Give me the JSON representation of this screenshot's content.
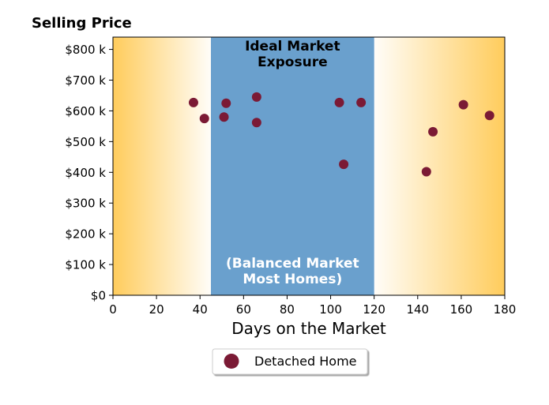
{
  "chart_data": {
    "type": "scatter",
    "title": "Selling Price",
    "xlabel": "Days on the Market",
    "ylabel": "",
    "xlim": [
      0,
      180
    ],
    "ylim": [
      0,
      840000
    ],
    "x_ticks": [
      0,
      20,
      40,
      60,
      80,
      100,
      120,
      140,
      160,
      180
    ],
    "x_tick_labels": [
      "0",
      "20",
      "40",
      "60",
      "80",
      "100",
      "120",
      "140",
      "160",
      "180"
    ],
    "y_ticks": [
      0,
      100000,
      200000,
      300000,
      400000,
      500000,
      600000,
      700000,
      800000
    ],
    "y_tick_labels": [
      "$0",
      "$100 k",
      "$200 k",
      "$300 k",
      "$400 k",
      "$500 k",
      "$600 k",
      "$700 k",
      "$800 k"
    ],
    "grid": false,
    "legend_position": "bottom-center",
    "zones": {
      "ideal": {
        "x_range": [
          45,
          120
        ],
        "title_lines": [
          "Ideal Market",
          "Exposure"
        ],
        "subtitle_lines": [
          "(Balanced Market",
          "Most Homes)"
        ],
        "color": "#6aa0cd"
      },
      "gradient_color": "#ffcc5c"
    },
    "series": [
      {
        "name": "Detached Home",
        "color": "#7b1a35",
        "points": [
          {
            "x": 37,
            "y": 627000
          },
          {
            "x": 42,
            "y": 575000
          },
          {
            "x": 51,
            "y": 580000
          },
          {
            "x": 52,
            "y": 625000
          },
          {
            "x": 66,
            "y": 645000
          },
          {
            "x": 66,
            "y": 562000
          },
          {
            "x": 104,
            "y": 627000
          },
          {
            "x": 106,
            "y": 426000
          },
          {
            "x": 114,
            "y": 627000
          },
          {
            "x": 144,
            "y": 402000
          },
          {
            "x": 147,
            "y": 532000
          },
          {
            "x": 161,
            "y": 620000
          },
          {
            "x": 173,
            "y": 585000
          }
        ]
      }
    ]
  }
}
